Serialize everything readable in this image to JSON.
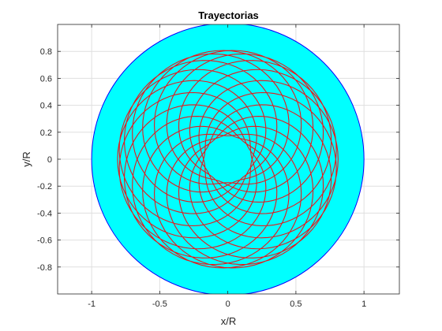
{
  "chart_data": {
    "type": "line",
    "title": "Trayectorias",
    "xlabel": "x/R",
    "ylabel": "y/R",
    "xlim": [
      -1.25,
      1.26
    ],
    "ylim": [
      -1,
      1
    ],
    "x_ticks": [
      -1,
      -0.5,
      0,
      0.5,
      1
    ],
    "x_tick_labels": [
      "-1",
      "-0.5",
      "0",
      "0.5",
      "1"
    ],
    "y_ticks": [
      -0.8,
      -0.6,
      -0.4,
      -0.2,
      0,
      0.2,
      0.4,
      0.6,
      0.8
    ],
    "y_tick_labels": [
      "-0.8",
      "-0.6",
      "-0.4",
      "-0.2",
      "0",
      "0.2",
      "0.4",
      "0.6",
      "0.8"
    ],
    "grid": true,
    "disk": {
      "radius": 1.0,
      "fill": "#00ffff",
      "edge": "#0000ff"
    },
    "inner_radius": 0.174,
    "outer_radius": 0.81,
    "lobe_count": 36,
    "trajectory_color": "#e41a1c",
    "background": "#ffffff"
  }
}
